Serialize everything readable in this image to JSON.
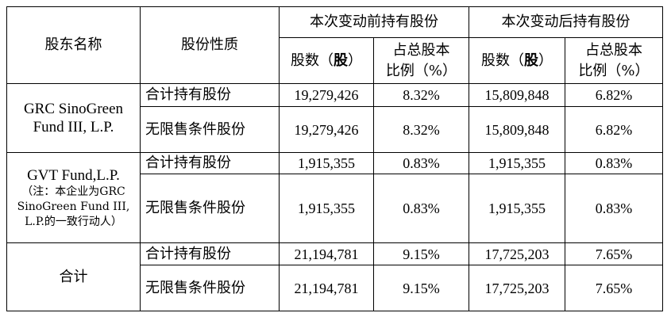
{
  "header": {
    "holder_name": "股东名称",
    "share_nature": "股份性质",
    "before_group": "本次变动前持有股份",
    "after_group": "本次变动后持有股份",
    "shares_prefix": "股数（",
    "shares_unit": "股",
    "shares_suffix": "）",
    "ratio_line1": "占总股本",
    "ratio_line2": "比例（%）"
  },
  "groups": [
    {
      "holder": "GRC SinoGreen Fund III, L.P.",
      "rows": [
        {
          "nature": "合计持有股份",
          "before_shares": "19,279,426",
          "before_ratio": "8.32%",
          "after_shares": "15,809,848",
          "after_ratio": "6.82%"
        },
        {
          "nature": "无限售条件股份",
          "before_shares": "19,279,426",
          "before_ratio": "8.32%",
          "after_shares": "15,809,848",
          "after_ratio": "6.82%"
        }
      ]
    },
    {
      "holder": "GVT Fund,L.P.",
      "holder_note": "（注：本企业为GRC SinoGreen Fund III, L.P.的一致行动人）",
      "rows": [
        {
          "nature": "合计持有股份",
          "before_shares": "1,915,355",
          "before_ratio": "0.83%",
          "after_shares": "1,915,355",
          "after_ratio": "0.83%"
        },
        {
          "nature": "无限售条件股份",
          "before_shares": "1,915,355",
          "before_ratio": "0.83%",
          "after_shares": "1,915,355",
          "after_ratio": "0.83%"
        }
      ]
    },
    {
      "holder": "合计",
      "rows": [
        {
          "nature": "合计持有股份",
          "before_shares": "21,194,781",
          "before_ratio": "9.15%",
          "after_shares": "17,725,203",
          "after_ratio": "7.65%"
        },
        {
          "nature": "无限售条件股份",
          "before_shares": "21,194,781",
          "before_ratio": "9.15%",
          "after_shares": "17,725,203",
          "after_ratio": "7.65%"
        }
      ]
    }
  ]
}
